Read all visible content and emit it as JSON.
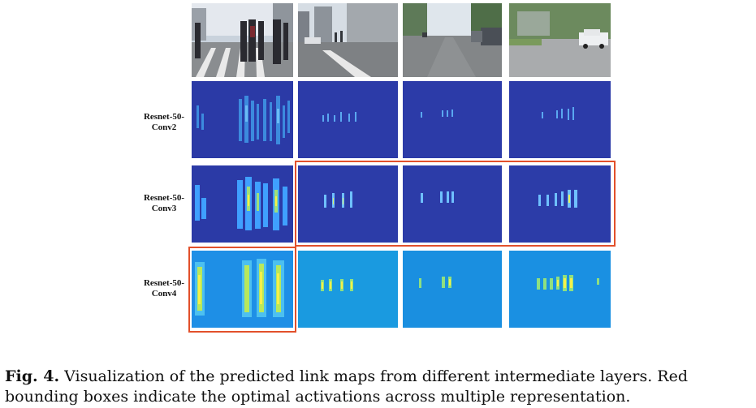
{
  "figure": {
    "row_labels": [
      {
        "line1": "Resnet-50-",
        "line2": "Conv2"
      },
      {
        "line1": "Resnet-50-",
        "line2": "Conv3"
      },
      {
        "line1": "Resnet-50-",
        "line2": "Conv4"
      }
    ],
    "caption": {
      "label": "Fig. 4.",
      "line1": "Visualization of the predicted link maps from different intermediate layers. Red",
      "line2": "bounding boxes indicate the optimal activations across multiple representation."
    },
    "colors": {
      "highlight_box": "#e2502b",
      "conv2_background": "#2b3aa6",
      "conv3_background": "#2c3ca8",
      "conv4_background": "#1a8fe0",
      "activation_low": "#3fa0ff",
      "activation_high": "#f5f04a"
    }
  }
}
